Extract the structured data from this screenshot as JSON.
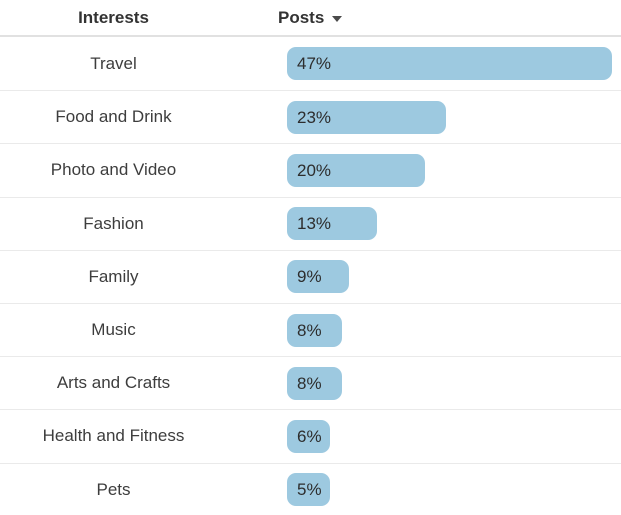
{
  "header": {
    "interests_label": "Interests",
    "posts_label": "Posts",
    "sort_icon": "caret-down-icon",
    "sort_direction": "descending"
  },
  "rows": [
    {
      "interest": "Travel",
      "posts": "47%",
      "value": 47
    },
    {
      "interest": "Food and Drink",
      "posts": "23%",
      "value": 23
    },
    {
      "interest": "Photo and Video",
      "posts": "20%",
      "value": 20
    },
    {
      "interest": "Fashion",
      "posts": "13%",
      "value": 13
    },
    {
      "interest": "Family",
      "posts": "9%",
      "value": 9
    },
    {
      "interest": "Music",
      "posts": "8%",
      "value": 8
    },
    {
      "interest": "Arts and Crafts",
      "posts": "8%",
      "value": 8
    },
    {
      "interest": "Health and Fitness",
      "posts": "6%",
      "value": 6
    },
    {
      "interest": "Pets",
      "posts": "5%",
      "value": 5
    }
  ],
  "colors": {
    "bar_fill": "#9DC9E0",
    "bar_text": "#2D2D2D",
    "label_text": "#3D3D3D",
    "header_text": "#333333",
    "header_divider": "#E1E1E1",
    "row_divider": "#EAEAEA",
    "background": "#FFFFFF"
  },
  "chart_data": {
    "type": "bar",
    "orientation": "horizontal",
    "title": "",
    "xlabel": "Posts",
    "ylabel": "Interests",
    "categories": [
      "Travel",
      "Food and Drink",
      "Photo and Video",
      "Fashion",
      "Family",
      "Music",
      "Arts and Crafts",
      "Health and Fitness",
      "Pets"
    ],
    "values": [
      47,
      23,
      20,
      13,
      9,
      8,
      8,
      6,
      5
    ],
    "data_labels": [
      "47%",
      "23%",
      "20%",
      "13%",
      "9%",
      "8%",
      "8%",
      "6%",
      "5%"
    ],
    "xlim": [
      0,
      47
    ],
    "grid": false,
    "legend": false,
    "sorted_by": "Posts descending"
  }
}
